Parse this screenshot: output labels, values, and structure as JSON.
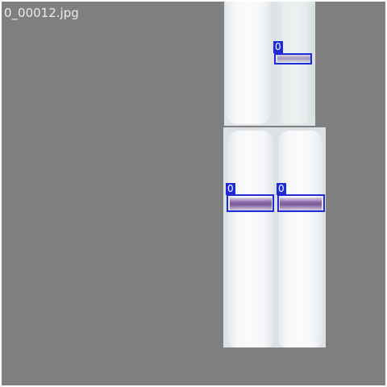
{
  "image": {
    "filename": "0_00012.jpg"
  },
  "detections": [
    {
      "class_label": "0",
      "box_color": "#1f2bd6"
    },
    {
      "class_label": "0",
      "box_color": "#1f2bd6"
    },
    {
      "class_label": "0",
      "box_color": "#1f2bd6"
    }
  ],
  "colors": {
    "background": "#7f7f7f",
    "filename_text": "#ececec",
    "box": "#1f2bd6",
    "band": "#7a5a98"
  }
}
